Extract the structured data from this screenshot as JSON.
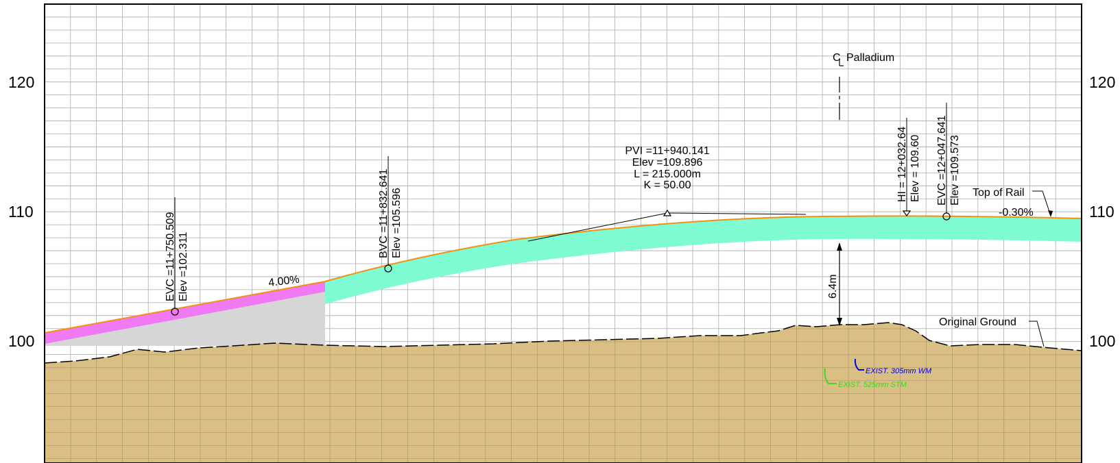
{
  "y_axis": {
    "ticks": [
      {
        "value": 120,
        "label": "120"
      },
      {
        "value": 110,
        "label": "110"
      },
      {
        "value": 100,
        "label": "100"
      }
    ]
  },
  "colors": {
    "ground": "#d9bf84",
    "ground_grid": "#8f7a50",
    "grid": "#aaaaaa",
    "rail_line": "#f39012",
    "green_band": "#7ffbd4",
    "magenta_band": "#f07af4",
    "grey_fill": "#d6d6d6",
    "water_main": "#0000e0",
    "storm": "#33dd22"
  },
  "annotations": {
    "evc1": {
      "station": "EVC =11+750.509",
      "elev": "Elev =102.311"
    },
    "bvc": {
      "station": "BVC =11+832.641",
      "elev": "Elev =105.596"
    },
    "pvi": {
      "station": "PVI =11+940.141",
      "elev": "Elev =109.896",
      "length": "L = 215.000m",
      "k": "K = 50.00"
    },
    "hi": {
      "station": "HI = 12+032.64",
      "elev": "Elev = 109.60"
    },
    "evc2": {
      "station": "EVC =12+047.641",
      "elev": "Elev =109.573"
    },
    "grade_up": "4.00%",
    "grade_down": "-0.30%",
    "top_of_rail": "Top of Rail",
    "original_ground": "Original Ground",
    "centerline": "Palladium",
    "centerline_symbol": "CL",
    "clearance": "6.4m",
    "water_main": "EXIST. 305mm WM",
    "storm": "EXIST. 525mm STM"
  }
}
